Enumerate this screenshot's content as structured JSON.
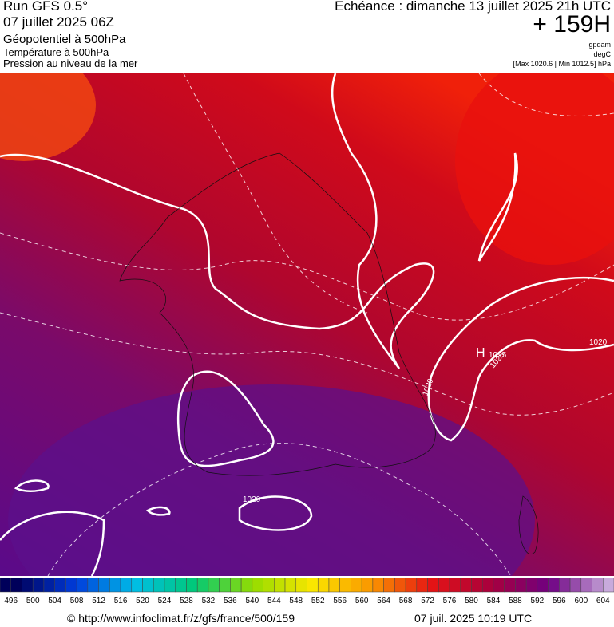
{
  "header": {
    "run": "Run GFS 0.5°",
    "date": "07 juillet 2025 06Z",
    "field1": "Géopotentiel à 500hPa",
    "field2": "Température à 500hPa",
    "field3": "Pression au niveau de la mer",
    "valid": "Echéance : dimanche 13 juillet 2025 21h UTC",
    "lead": "+ 159H",
    "unit1": "gpdam",
    "unit2": "degC",
    "range": "[Max 1020.6 | Min 1012.5] hPa"
  },
  "map": {
    "labels": [
      "H",
      "1025",
      "1020",
      "1020",
      "1020",
      "1025"
    ]
  },
  "legend": {
    "labels": [
      496,
      500,
      504,
      508,
      512,
      516,
      520,
      524,
      528,
      532,
      536,
      540,
      544,
      548,
      552,
      556,
      560,
      564,
      568,
      572,
      576,
      580,
      584,
      588,
      592,
      596,
      600,
      604
    ]
  },
  "footer": {
    "url": "© http://www.infoclimat.fr/z/gfs/france/500/159",
    "stamp": "07 juil. 2025 10:19 UTC"
  }
}
